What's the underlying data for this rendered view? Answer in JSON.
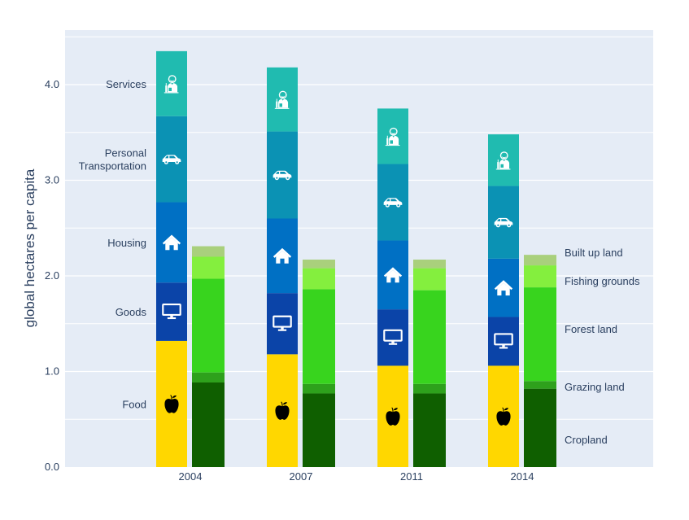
{
  "chart_data": {
    "type": "bar",
    "barmode": "stack",
    "title": "",
    "xlabel": "",
    "ylabel": "global hectares per capita",
    "ylim": [
      0,
      4.57
    ],
    "yticks": [
      "0.0",
      "1.0",
      "2.0",
      "3.0",
      "4.0"
    ],
    "grid": true,
    "categories": [
      "2004",
      "2007",
      "2011",
      "2014"
    ],
    "consumption_series": [
      {
        "name": "Food",
        "icon": "apple-icon",
        "color": "#ffd700",
        "icon_color": "#000000",
        "values": [
          1.32,
          1.18,
          1.06,
          1.06
        ]
      },
      {
        "name": "Goods",
        "icon": "monitor-icon",
        "color": "#0b44a8",
        "icon_color": "#ffffff",
        "values": [
          0.61,
          0.64,
          0.59,
          0.51
        ]
      },
      {
        "name": "Housing",
        "icon": "house-icon",
        "color": "#0070c4",
        "icon_color": "#ffffff",
        "values": [
          0.84,
          0.78,
          0.72,
          0.61
        ]
      },
      {
        "name": "Personal\nTransportation",
        "icon": "car-icon",
        "color": "#0b92b4",
        "icon_color": "#ffffff",
        "values": [
          0.9,
          0.91,
          0.8,
          0.76
        ]
      },
      {
        "name": "Services",
        "icon": "person-icon",
        "color": "#20bbb0",
        "icon_color": "#ffffff",
        "values": [
          0.68,
          0.67,
          0.58,
          0.54
        ]
      }
    ],
    "land_series": [
      {
        "name": "Cropland",
        "color": "#0f5f00",
        "values": [
          0.885,
          0.77,
          0.77,
          0.82
        ]
      },
      {
        "name": "Grazing land",
        "color": "#2ea11c",
        "values": [
          0.105,
          0.1,
          0.1,
          0.08
        ]
      },
      {
        "name": "Forest land",
        "color": "#38d41e",
        "values": [
          0.98,
          0.99,
          0.98,
          0.98
        ]
      },
      {
        "name": "Fishing grounds",
        "color": "#84ef3e",
        "values": [
          0.23,
          0.22,
          0.23,
          0.23
        ]
      },
      {
        "name": "Built up land",
        "color": "#a9d07c",
        "values": [
          0.11,
          0.09,
          0.09,
          0.11
        ]
      }
    ]
  },
  "colors": {
    "plot_bg": "#e5ecf6",
    "grid": "#ffffff",
    "text": "#2a3f5f"
  }
}
